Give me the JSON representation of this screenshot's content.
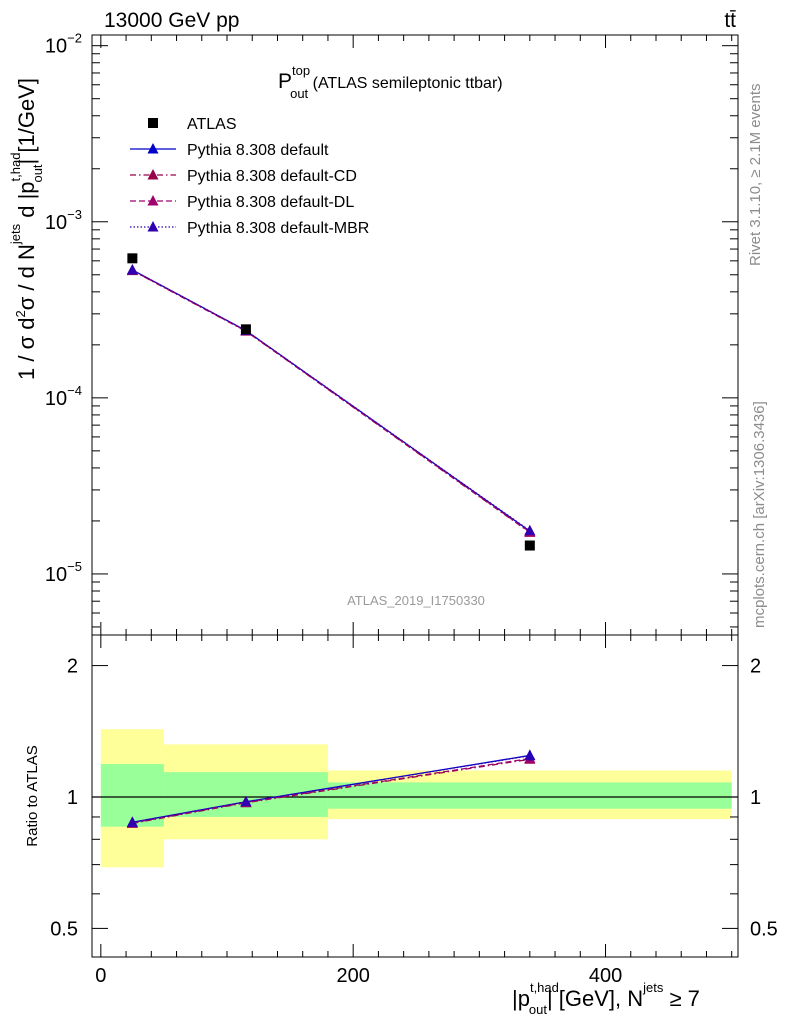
{
  "header": {
    "energy_label": "13000 GeV pp",
    "process_label": "tt̄",
    "rivet_label": "Rivet 3.1.10, ≥ 2.1M events",
    "mcplots_label": "mcplots.cern.ch [arXiv:1306.3436]",
    "analysis_id": "ATLAS_2019_I1750330"
  },
  "title": {
    "main": "P",
    "sup": "top",
    "sub": "out",
    "suffix": " (ATLAS semileptonic ttbar)"
  },
  "ylabel_main": "1 / σ d²σ / d N^jets d |p_out^t,had| [1/GeV]",
  "ylabel_ratio": "Ratio to ATLAS",
  "xlabel": "|p_out^t,had| [GeV], N^jets ≥ 7",
  "colors": {
    "data": "#000000",
    "default": "#0000cc",
    "cd": "#99004c",
    "dl": "#a0006e",
    "mbr": "#3000b0",
    "band_inner": "#99ff99",
    "band_outer": "#ffff99"
  },
  "chart_data": {
    "type": "scatter",
    "x_range": [
      -7,
      505
    ],
    "main_ylim": [
      4.5e-06,
      0.0115
    ],
    "main_yscale": "log",
    "main_yticks": [
      {
        "value": 1e-05,
        "base": "10",
        "exp": "−5"
      },
      {
        "value": 0.0001,
        "base": "10",
        "exp": "−4"
      },
      {
        "value": 0.001,
        "base": "10",
        "exp": "−3"
      },
      {
        "value": 0.01,
        "base": "10",
        "exp": "−2"
      }
    ],
    "ratio_ylim": [
      0.43,
      2.35
    ],
    "ratio_yscale": "log",
    "ratio_yticks": [
      {
        "value": 0.5,
        "label": "0.5"
      },
      {
        "value": 1,
        "label": "1"
      },
      {
        "value": 2,
        "label": "2"
      }
    ],
    "x_ticks": [
      {
        "value": 0,
        "label": "0"
      },
      {
        "value": 200,
        "label": "200"
      },
      {
        "value": 400,
        "label": "400"
      }
    ],
    "bins": [
      {
        "lo": 0,
        "hi": 50
      },
      {
        "lo": 50,
        "hi": 180
      },
      {
        "lo": 180,
        "hi": 500
      }
    ],
    "x": [
      25,
      115,
      340
    ],
    "data": {
      "name": "ATLAS",
      "values": [
        0.00062,
        0.000245,
        1.45e-05
      ]
    },
    "uncertainty_bands": {
      "inner": [
        [
          0.855,
          1.19
        ],
        [
          0.9,
          1.14
        ],
        [
          0.94,
          1.08
        ]
      ],
      "outer": [
        [
          0.69,
          1.43
        ],
        [
          0.8,
          1.32
        ],
        [
          0.89,
          1.15
        ]
      ]
    },
    "series": [
      {
        "name": "Pythia 8.308 default",
        "style": "solid",
        "color_key": "default",
        "values": [
          0.000533,
          0.000241,
          1.75e-05
        ],
        "ratio": [
          0.875,
          0.975,
          1.245
        ]
      },
      {
        "name": "Pythia 8.308 default-CD",
        "style": "dashdot",
        "color_key": "cd",
        "values": [
          0.000528,
          0.000239,
          1.72e-05
        ],
        "ratio": [
          0.87,
          0.97,
          1.22
        ]
      },
      {
        "name": "Pythia 8.308 default-DL",
        "style": "dashed",
        "color_key": "dl",
        "values": [
          0.00053,
          0.00024,
          1.73e-05
        ],
        "ratio": [
          0.872,
          0.972,
          1.225
        ]
      },
      {
        "name": "Pythia 8.308 default-MBR",
        "style": "dotted",
        "color_key": "mbr",
        "values": [
          0.000532,
          0.000241,
          1.76e-05
        ],
        "ratio": [
          0.874,
          0.975,
          1.243
        ]
      }
    ]
  }
}
